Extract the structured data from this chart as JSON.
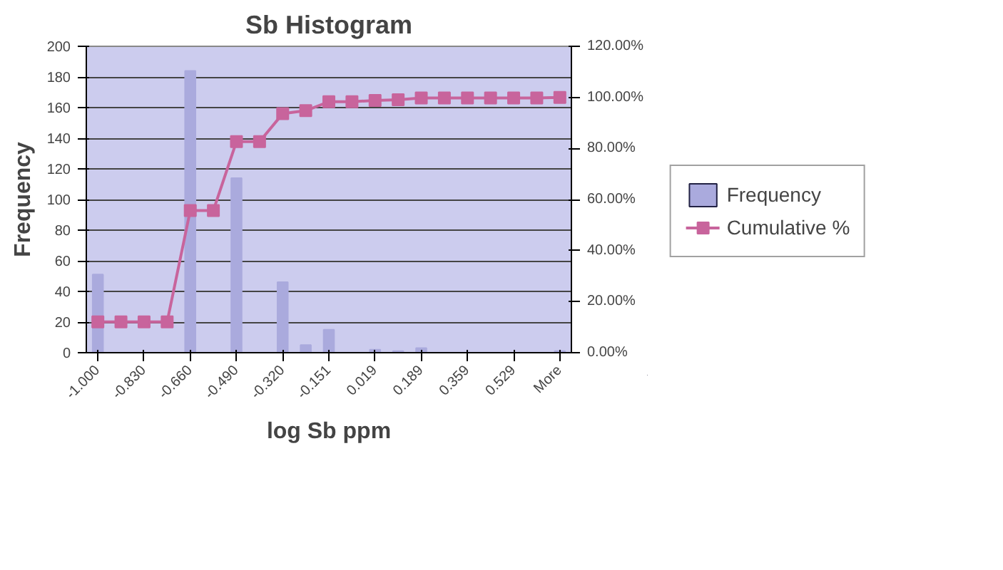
{
  "chart_data": {
    "type": "bar",
    "title": "Sb Histogram",
    "xlabel": "log Sb ppm",
    "ylabel": "Frequency",
    "categories": [
      "-1.000",
      null,
      "-0.830",
      null,
      "-0.660",
      null,
      "-0.490",
      null,
      "-0.320",
      null,
      "-0.151",
      null,
      "0.019",
      null,
      "0.189",
      null,
      "0.359",
      null,
      "0.529",
      null,
      "More"
    ],
    "series": [
      {
        "name": "Frequency",
        "color": "#aaaadd",
        "values": [
          51,
          0,
          0,
          0,
          184,
          0,
          114,
          0,
          46,
          5,
          15,
          0,
          2,
          1,
          3,
          0,
          0,
          0,
          0,
          0,
          1
        ]
      },
      {
        "name": "Cumulative %",
        "type": "line",
        "axis": "y2",
        "color": "#c8649c",
        "marker": "square",
        "values": [
          12.1,
          12.1,
          12.1,
          12.1,
          55.7,
          55.7,
          82.7,
          82.7,
          93.6,
          94.8,
          98.3,
          98.3,
          98.8,
          99.1,
          99.8,
          99.8,
          99.8,
          99.8,
          99.8,
          99.8,
          100
        ]
      }
    ],
    "ylim": [
      0,
      200
    ],
    "yticks": [
      0,
      20,
      40,
      60,
      80,
      100,
      120,
      140,
      160,
      180,
      200
    ],
    "y2lim": [
      0,
      120
    ],
    "y2ticks": [
      {
        "value": 0,
        "label": "0.00%"
      },
      {
        "value": 20,
        "label": "20.00%"
      },
      {
        "value": 40,
        "label": "40.00%"
      },
      {
        "value": 60,
        "label": "60.00%"
      },
      {
        "value": 80,
        "label": "80.00%"
      },
      {
        "value": 100,
        "label": "100.00%"
      },
      {
        "value": 120,
        "label": "120.00%"
      }
    ],
    "grid": "y",
    "legend": "right"
  }
}
